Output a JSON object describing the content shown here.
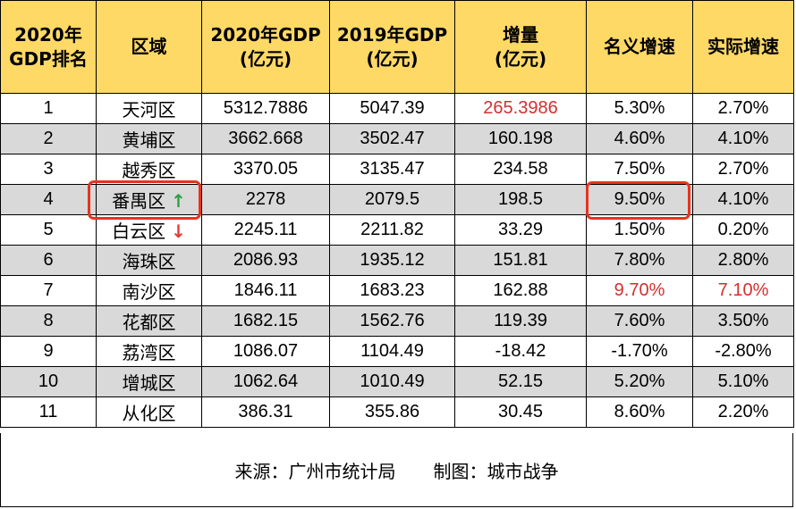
{
  "columns": [
    [
      "2020年",
      "GDP排名"
    ],
    [
      "区域"
    ],
    [
      "2020年GDP",
      "(亿元)"
    ],
    [
      "2019年GDP",
      "(亿元)"
    ],
    [
      "增量",
      "(亿元)"
    ],
    [
      "名义增速"
    ],
    [
      "实际增速"
    ]
  ],
  "rows": [
    {
      "rank": "1",
      "district": "天河区",
      "gdp2020": "5312.7886",
      "gdp2019": "5047.39",
      "increase": "265.3986",
      "nominal": "5.30%",
      "real": "2.70%"
    },
    {
      "rank": "2",
      "district": "黄埔区",
      "gdp2020": "3662.668",
      "gdp2019": "3502.47",
      "increase": "160.198",
      "nominal": "4.60%",
      "real": "4.10%"
    },
    {
      "rank": "3",
      "district": "越秀区",
      "gdp2020": "3370.05",
      "gdp2019": "3135.47",
      "increase": "234.58",
      "nominal": "7.50%",
      "real": "2.70%"
    },
    {
      "rank": "4",
      "district": "番禺区",
      "gdp2020": "2278",
      "gdp2019": "2079.5",
      "increase": "198.5",
      "nominal": "9.50%",
      "real": "4.10%",
      "arrow": "↑"
    },
    {
      "rank": "5",
      "district": "白云区",
      "gdp2020": "2245.11",
      "gdp2019": "2211.82",
      "increase": "33.29",
      "nominal": "1.50%",
      "real": "0.20%",
      "arrow": "↓"
    },
    {
      "rank": "6",
      "district": "海珠区",
      "gdp2020": "2086.93",
      "gdp2019": "1935.12",
      "increase": "151.81",
      "nominal": "7.80%",
      "real": "2.80%"
    },
    {
      "rank": "7",
      "district": "南沙区",
      "gdp2020": "1846.11",
      "gdp2019": "1683.23",
      "increase": "162.88",
      "nominal": "9.70%",
      "real": "7.10%"
    },
    {
      "rank": "8",
      "district": "花都区",
      "gdp2020": "1682.15",
      "gdp2019": "1562.76",
      "increase": "119.39",
      "nominal": "7.60%",
      "real": "3.50%"
    },
    {
      "rank": "9",
      "district": "荔湾区",
      "gdp2020": "1086.07",
      "gdp2019": "1104.49",
      "increase": "-18.42",
      "nominal": "-1.70%",
      "real": "-2.80%"
    },
    {
      "rank": "10",
      "district": "增城区",
      "gdp2020": "1062.64",
      "gdp2019": "1010.49",
      "increase": "52.15",
      "nominal": "5.20%",
      "real": "5.10%"
    },
    {
      "rank": "11",
      "district": "从化区",
      "gdp2020": "386.31",
      "gdp2019": "355.86",
      "increase": "30.45",
      "nominal": "8.60%",
      "real": "2.20%"
    }
  ],
  "red_cells": [
    {
      "row": 0,
      "field": "increase"
    },
    {
      "row": 6,
      "field": "nominal"
    },
    {
      "row": 6,
      "field": "real"
    }
  ],
  "footer": {
    "source": "来源：广州市统计局",
    "author": "制图：城市战争"
  },
  "colors": {
    "header_bg": "#ffd966",
    "stripe_bg": "#d9d9d9",
    "highlight_red": "#d32f2f",
    "border_red": "#e8331f",
    "arrow_up": "#2e9e44",
    "arrow_down": "#e53935"
  }
}
